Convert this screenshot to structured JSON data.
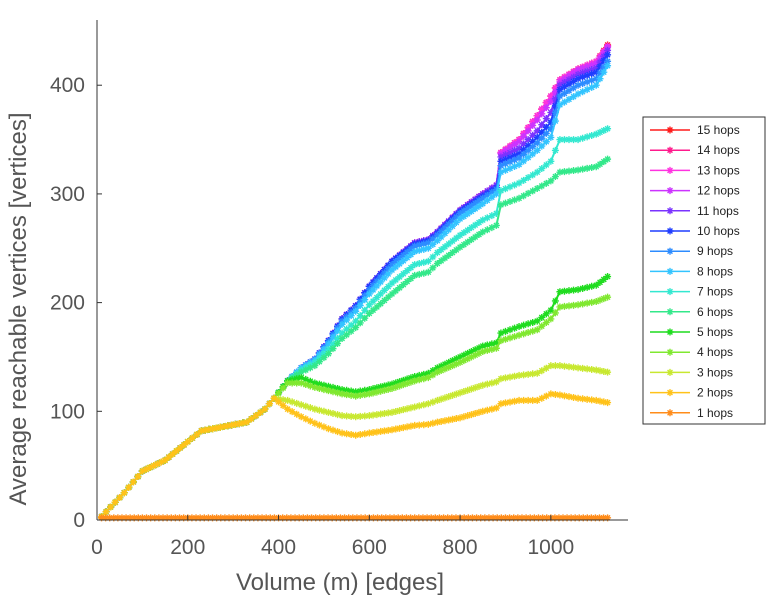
{
  "chart_data": {
    "type": "line",
    "title": "",
    "xlabel": "Volume (m) [edges]",
    "ylabel": "Average reachable vertices [vertices]",
    "xlim": [
      0,
      1170
    ],
    "ylim": [
      0,
      460
    ],
    "xticks": [
      0,
      200,
      400,
      600,
      800,
      1000
    ],
    "yticks": [
      0,
      100,
      200,
      300,
      400
    ],
    "xtick_labels": [
      "0",
      "200",
      "400",
      "600",
      "800",
      "1000"
    ],
    "ytick_labels": [
      "0",
      "100",
      "200",
      "300",
      "400"
    ],
    "grid": false,
    "legend_position": "right",
    "marker": "asterisk",
    "series": [
      {
        "name": "15 hops",
        "color": "#ff1a1a",
        "x": [
          10,
          30,
          60,
          100,
          150,
          200,
          230,
          280,
          330,
          370,
          390,
          420,
          450,
          480,
          510,
          540,
          570,
          600,
          650,
          700,
          730,
          750,
          800,
          850,
          880,
          890,
          930,
          970,
          1000,
          1020,
          1060,
          1100,
          1125
        ],
        "y": [
          3,
          12,
          25,
          45,
          55,
          72,
          82,
          86,
          90,
          102,
          112,
          128,
          140,
          148,
          165,
          185,
          197,
          215,
          238,
          255,
          258,
          265,
          285,
          300,
          308,
          338,
          350,
          372,
          390,
          405,
          415,
          422,
          437
        ]
      },
      {
        "name": "14 hops",
        "color": "#ff1a8c",
        "x": [
          10,
          30,
          60,
          100,
          150,
          200,
          230,
          280,
          330,
          370,
          390,
          420,
          450,
          480,
          510,
          540,
          570,
          600,
          650,
          700,
          730,
          750,
          800,
          850,
          880,
          890,
          930,
          970,
          1000,
          1020,
          1060,
          1100,
          1125
        ],
        "y": [
          3,
          12,
          25,
          45,
          55,
          72,
          82,
          86,
          90,
          102,
          112,
          128,
          140,
          148,
          165,
          185,
          197,
          215,
          238,
          255,
          258,
          265,
          285,
          300,
          308,
          338,
          350,
          372,
          390,
          405,
          415,
          422,
          436
        ]
      },
      {
        "name": "13 hops",
        "color": "#ff33e0",
        "x": [
          10,
          30,
          60,
          100,
          150,
          200,
          230,
          280,
          330,
          370,
          390,
          420,
          450,
          480,
          510,
          540,
          570,
          600,
          650,
          700,
          730,
          750,
          800,
          850,
          880,
          890,
          930,
          970,
          1000,
          1020,
          1060,
          1100,
          1125
        ],
        "y": [
          3,
          12,
          25,
          45,
          55,
          72,
          82,
          86,
          90,
          102,
          112,
          128,
          140,
          148,
          165,
          185,
          197,
          215,
          238,
          255,
          258,
          265,
          285,
          300,
          308,
          338,
          350,
          372,
          390,
          405,
          415,
          422,
          436
        ]
      },
      {
        "name": "12 hops",
        "color": "#cc33ff",
        "x": [
          10,
          30,
          60,
          100,
          150,
          200,
          230,
          280,
          330,
          370,
          390,
          420,
          450,
          480,
          510,
          540,
          570,
          600,
          650,
          700,
          730,
          750,
          800,
          850,
          880,
          890,
          930,
          970,
          1000,
          1020,
          1060,
          1100,
          1125
        ],
        "y": [
          3,
          12,
          25,
          45,
          55,
          72,
          82,
          86,
          90,
          102,
          112,
          128,
          140,
          148,
          165,
          185,
          197,
          215,
          238,
          255,
          258,
          265,
          285,
          300,
          308,
          337,
          348,
          368,
          385,
          403,
          414,
          420,
          435
        ]
      },
      {
        "name": "11 hops",
        "color": "#7a33ff",
        "x": [
          10,
          30,
          60,
          100,
          150,
          200,
          230,
          280,
          330,
          370,
          390,
          420,
          450,
          480,
          510,
          540,
          570,
          600,
          650,
          700,
          730,
          750,
          800,
          850,
          880,
          890,
          930,
          970,
          1000,
          1020,
          1060,
          1100,
          1125
        ],
        "y": [
          3,
          12,
          25,
          45,
          55,
          72,
          82,
          86,
          90,
          102,
          112,
          128,
          140,
          148,
          165,
          185,
          197,
          215,
          238,
          255,
          258,
          265,
          285,
          300,
          308,
          334,
          342,
          358,
          375,
          400,
          410,
          416,
          432
        ]
      },
      {
        "name": "10 hops",
        "color": "#1f3dff",
        "x": [
          10,
          30,
          60,
          100,
          150,
          200,
          230,
          280,
          330,
          370,
          390,
          420,
          450,
          480,
          510,
          540,
          570,
          600,
          650,
          700,
          730,
          750,
          800,
          850,
          880,
          890,
          930,
          970,
          1000,
          1020,
          1060,
          1100,
          1125
        ],
        "y": [
          3,
          12,
          25,
          45,
          55,
          72,
          82,
          86,
          90,
          102,
          112,
          128,
          140,
          148,
          165,
          185,
          197,
          215,
          238,
          254,
          257,
          264,
          284,
          298,
          306,
          330,
          337,
          352,
          366,
          396,
          406,
          412,
          428
        ]
      },
      {
        "name": "9 hops",
        "color": "#2d8cff",
        "x": [
          10,
          30,
          60,
          100,
          150,
          200,
          230,
          280,
          330,
          370,
          390,
          420,
          450,
          480,
          510,
          540,
          570,
          600,
          650,
          700,
          730,
          750,
          800,
          850,
          880,
          890,
          930,
          970,
          1000,
          1020,
          1060,
          1100,
          1125
        ],
        "y": [
          3,
          12,
          25,
          45,
          55,
          72,
          82,
          86,
          90,
          102,
          112,
          128,
          140,
          148,
          164,
          183,
          195,
          212,
          235,
          252,
          255,
          262,
          282,
          296,
          304,
          326,
          333,
          347,
          360,
          390,
          400,
          406,
          422
        ]
      },
      {
        "name": "8 hops",
        "color": "#33c4ff",
        "x": [
          10,
          30,
          60,
          100,
          150,
          200,
          230,
          280,
          330,
          370,
          390,
          420,
          450,
          480,
          510,
          540,
          570,
          600,
          650,
          700,
          730,
          750,
          800,
          850,
          880,
          890,
          930,
          970,
          1000,
          1020,
          1060,
          1100,
          1125
        ],
        "y": [
          3,
          12,
          25,
          45,
          55,
          72,
          82,
          86,
          90,
          102,
          112,
          128,
          140,
          147,
          162,
          180,
          192,
          208,
          230,
          247,
          250,
          257,
          277,
          291,
          300,
          320,
          327,
          340,
          352,
          382,
          392,
          400,
          418
        ]
      },
      {
        "name": "7 hops",
        "color": "#33e8d0",
        "x": [
          10,
          30,
          60,
          100,
          150,
          200,
          230,
          280,
          330,
          370,
          390,
          420,
          450,
          480,
          510,
          540,
          570,
          600,
          650,
          700,
          730,
          750,
          800,
          850,
          880,
          890,
          930,
          970,
          1000,
          1020,
          1060,
          1100,
          1125
        ],
        "y": [
          3,
          12,
          25,
          45,
          55,
          72,
          82,
          86,
          90,
          102,
          112,
          128,
          138,
          145,
          157,
          172,
          183,
          198,
          218,
          235,
          238,
          246,
          262,
          276,
          282,
          303,
          310,
          320,
          330,
          350,
          350,
          355,
          360
        ]
      },
      {
        "name": "6 hops",
        "color": "#33e88a",
        "x": [
          10,
          30,
          60,
          100,
          150,
          200,
          230,
          280,
          330,
          370,
          390,
          420,
          450,
          480,
          510,
          540,
          570,
          600,
          650,
          700,
          730,
          750,
          800,
          850,
          880,
          890,
          930,
          970,
          1000,
          1020,
          1060,
          1100,
          1125
        ],
        "y": [
          3,
          12,
          25,
          45,
          55,
          72,
          82,
          86,
          90,
          102,
          112,
          128,
          136,
          142,
          153,
          167,
          177,
          190,
          208,
          225,
          228,
          236,
          251,
          265,
          271,
          290,
          296,
          305,
          312,
          320,
          322,
          325,
          332
        ]
      },
      {
        "name": "5 hops",
        "color": "#1fdc1f",
        "x": [
          10,
          30,
          60,
          100,
          150,
          200,
          230,
          280,
          330,
          370,
          390,
          420,
          450,
          480,
          510,
          540,
          570,
          600,
          650,
          700,
          730,
          750,
          800,
          850,
          880,
          890,
          930,
          970,
          1000,
          1020,
          1060,
          1100,
          1125
        ],
        "y": [
          3,
          12,
          25,
          45,
          55,
          72,
          82,
          86,
          90,
          102,
          112,
          128,
          131,
          126,
          123,
          120,
          118,
          120,
          125,
          132,
          135,
          140,
          150,
          160,
          163,
          172,
          178,
          183,
          193,
          210,
          212,
          216,
          224
        ]
      },
      {
        "name": "4 hops",
        "color": "#80e830",
        "x": [
          10,
          30,
          60,
          100,
          150,
          200,
          230,
          280,
          330,
          370,
          390,
          420,
          450,
          480,
          510,
          540,
          570,
          600,
          650,
          700,
          730,
          750,
          800,
          850,
          880,
          890,
          930,
          970,
          1000,
          1020,
          1060,
          1100,
          1125
        ],
        "y": [
          3,
          12,
          25,
          45,
          55,
          72,
          82,
          86,
          90,
          102,
          112,
          126,
          126,
          122,
          119,
          116,
          114,
          116,
          121,
          128,
          131,
          136,
          145,
          155,
          158,
          165,
          170,
          175,
          185,
          196,
          198,
          201,
          205
        ]
      },
      {
        "name": "3 hops",
        "color": "#c8e830",
        "x": [
          10,
          30,
          60,
          100,
          150,
          200,
          230,
          280,
          330,
          370,
          390,
          420,
          450,
          480,
          510,
          540,
          570,
          600,
          650,
          700,
          730,
          750,
          800,
          850,
          880,
          890,
          930,
          970,
          1000,
          1020,
          1060,
          1100,
          1125
        ],
        "y": [
          3,
          12,
          25,
          45,
          55,
          72,
          82,
          86,
          90,
          102,
          112,
          110,
          106,
          102,
          99,
          96,
          95,
          96,
          99,
          104,
          107,
          110,
          117,
          124,
          127,
          130,
          133,
          135,
          142,
          142,
          140,
          138,
          136
        ]
      },
      {
        "name": "2 hops",
        "color": "#ffc21a",
        "x": [
          10,
          30,
          60,
          100,
          150,
          200,
          230,
          280,
          330,
          370,
          390,
          420,
          450,
          480,
          510,
          540,
          570,
          600,
          650,
          700,
          730,
          750,
          800,
          850,
          880,
          890,
          930,
          970,
          1000,
          1020,
          1060,
          1100,
          1125
        ],
        "y": [
          3,
          12,
          25,
          45,
          55,
          72,
          82,
          86,
          90,
          102,
          112,
          102,
          95,
          89,
          84,
          80,
          78,
          80,
          83,
          87,
          88,
          90,
          94,
          100,
          103,
          107,
          110,
          110,
          116,
          115,
          112,
          110,
          108
        ]
      },
      {
        "name": "1 hops",
        "color": "#ff8c1a",
        "x": [
          10,
          100,
          200,
          300,
          400,
          500,
          600,
          700,
          800,
          900,
          1000,
          1125
        ],
        "y": [
          2,
          2,
          2,
          2,
          2,
          2,
          2,
          2,
          2,
          2,
          2,
          2
        ]
      }
    ]
  }
}
